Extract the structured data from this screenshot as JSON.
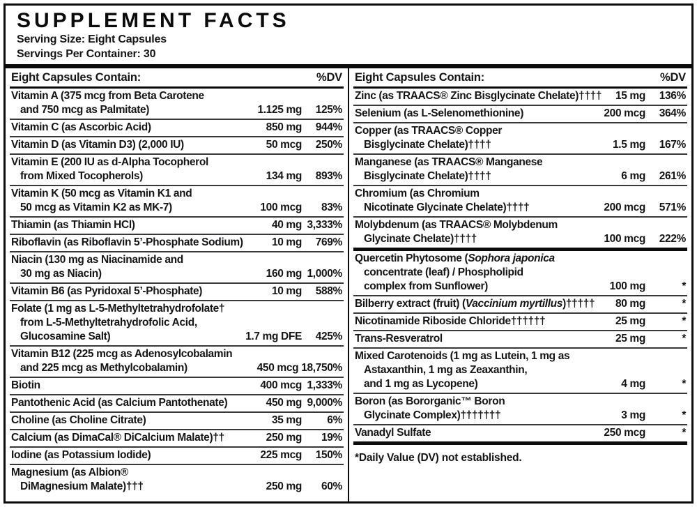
{
  "label": {
    "title": "SUPPLEMENT FACTS",
    "serving_size": "Serving Size: Eight Capsules",
    "servings_per_container": "Servings Per Container: 30",
    "columns": [
      {
        "header": "Eight Capsules Contain:",
        "dv_header": "%DV",
        "rows": [
          {
            "name_lines": [
              [
                "Vitamin A (375 mcg from Beta Carotene"
              ],
              [
                "and 750 mcg as Palmitate)"
              ]
            ],
            "amount": "1.125 mg",
            "dv": "125%",
            "sep": "first"
          },
          {
            "name_lines": [
              [
                "Vitamin C (as Ascorbic Acid)"
              ]
            ],
            "amount": "850 mg",
            "dv": "944%",
            "sep": "line"
          },
          {
            "name_lines": [
              [
                "Vitamin D (as Vitamin D3) (2,000 IU)"
              ]
            ],
            "amount": "50 mcg",
            "dv": "250%",
            "sep": "line"
          },
          {
            "name_lines": [
              [
                "Vitamin E (200 IU as d-Alpha Tocopherol"
              ],
              [
                "from Mixed Tocopherols)"
              ]
            ],
            "amount": "134 mg",
            "dv": "893%",
            "sep": "line"
          },
          {
            "name_lines": [
              [
                "Vitamin K (50 mcg as Vitamin K1 and"
              ],
              [
                "50 mcg as Vitamin K2 as MK-7)"
              ]
            ],
            "amount": "100 mcg",
            "dv": "83%",
            "sep": "line"
          },
          {
            "name_lines": [
              [
                "Thiamin (as Thiamin HCl)"
              ]
            ],
            "amount": "40 mg",
            "dv": "3,333%",
            "sep": "line"
          },
          {
            "name_lines": [
              [
                "Riboflavin (as Riboflavin 5’-Phosphate Sodium)"
              ]
            ],
            "amount": "10 mg",
            "dv": "769%",
            "sep": "line"
          },
          {
            "name_lines": [
              [
                "Niacin (130 mg as Niacinamide and"
              ],
              [
                "30 mg as Niacin)"
              ]
            ],
            "amount": "160 mg",
            "dv": "1,000%",
            "sep": "line"
          },
          {
            "name_lines": [
              [
                "Vitamin B6 (as Pyridoxal 5’-Phosphate)"
              ]
            ],
            "amount": "10 mg",
            "dv": "588%",
            "sep": "line"
          },
          {
            "name_lines": [
              [
                "Folate (1 mg as L-5-Methyltetrahydrofolate†"
              ],
              [
                "from L-5-Methyltetrahydrofolic Acid,"
              ],
              [
                "Glucosamine Salt)"
              ]
            ],
            "amount": "1.7 mg DFE",
            "dv": "425%",
            "sep": "line"
          },
          {
            "name_lines": [
              [
                "Vitamin B12 (225 mcg as Adenosylcobalamin"
              ],
              [
                "and 225 mcg as Methylcobalamin)"
              ]
            ],
            "amount": "450 mcg",
            "dv": "18,750%",
            "sep": "line"
          },
          {
            "name_lines": [
              [
                "Biotin"
              ]
            ],
            "amount": "400 mcg",
            "dv": "1,333%",
            "sep": "line"
          },
          {
            "name_lines": [
              [
                "Pantothenic Acid (as Calcium Pantothenate)"
              ]
            ],
            "amount": "450 mg",
            "dv": "9,000%",
            "sep": "line"
          },
          {
            "name_lines": [
              [
                "Choline (as Choline Citrate)"
              ]
            ],
            "amount": "35 mg",
            "dv": "6%",
            "sep": "line"
          },
          {
            "name_lines": [
              [
                "Calcium (as DimaCal® DiCalcium Malate)††"
              ]
            ],
            "amount": "250 mg",
            "dv": "19%",
            "sep": "line"
          },
          {
            "name_lines": [
              [
                "Iodine (as Potassium Iodide)"
              ]
            ],
            "amount": "225 mcg",
            "dv": "150%",
            "sep": "line"
          },
          {
            "name_lines": [
              [
                "Magnesium (as Albion®"
              ],
              [
                "DiMagnesium Malate)†††"
              ]
            ],
            "amount": "250 mg",
            "dv": "60%",
            "sep": "line"
          }
        ]
      },
      {
        "header": "Eight Capsules Contain:",
        "dv_header": "%DV",
        "rows": [
          {
            "name_lines": [
              [
                "Zinc (as TRAACS® Zinc Bisglycinate Chelate)††††"
              ]
            ],
            "amount": "15 mg",
            "dv": "136%",
            "sep": "first"
          },
          {
            "name_lines": [
              [
                "Selenium (as L-Selenomethionine)"
              ]
            ],
            "amount": "200 mcg",
            "dv": "364%",
            "sep": "line"
          },
          {
            "name_lines": [
              [
                "Copper (as TRAACS® Copper"
              ],
              [
                "Bisglycinate Chelate)††††"
              ]
            ],
            "amount": "1.5 mg",
            "dv": "167%",
            "sep": "line"
          },
          {
            "name_lines": [
              [
                "Manganese (as TRAACS® Manganese"
              ],
              [
                "Bisglycinate Chelate)††††"
              ]
            ],
            "amount": "6 mg",
            "dv": "261%",
            "sep": "line"
          },
          {
            "name_lines": [
              [
                "Chromium (as Chromium"
              ],
              [
                "Nicotinate Glycinate Chelate)††††"
              ]
            ],
            "amount": "200 mcg",
            "dv": "571%",
            "sep": "line"
          },
          {
            "name_lines": [
              [
                "Molybdenum (as TRAACS® Molybdenum"
              ],
              [
                "Glycinate Chelate)††††"
              ]
            ],
            "amount": "100 mcg",
            "dv": "222%",
            "sep": "line"
          },
          {
            "name_lines": [
              [
                "Quercetin Phytosome (",
                {
                  "i": "Sophora japonica"
                }
              ],
              [
                "concentrate (leaf) / Phospholipid"
              ],
              [
                "complex from Sunflower)"
              ]
            ],
            "amount": "100 mg",
            "dv": "*",
            "sep": "bar"
          },
          {
            "name_lines": [
              [
                "Bilberry extract (fruit) (",
                {
                  "i": "Vaccinium myrtillus"
                },
                ")†††††"
              ]
            ],
            "amount": "80 mg",
            "dv": "*",
            "sep": "line"
          },
          {
            "name_lines": [
              [
                "Nicotinamide Riboside Chloride††††††"
              ]
            ],
            "amount": "25 mg",
            "dv": "*",
            "sep": "line"
          },
          {
            "name_lines": [
              [
                "Trans-Resveratrol"
              ]
            ],
            "amount": "25 mg",
            "dv": "*",
            "sep": "line"
          },
          {
            "name_lines": [
              [
                "Mixed Carotenoids (1 mg as Lutein, 1 mg as"
              ],
              [
                "Astaxanthin, 1 mg as Zeaxanthin,"
              ],
              [
                "and 1 mg as Lycopene)"
              ]
            ],
            "amount": "4 mg",
            "dv": "*",
            "sep": "line"
          },
          {
            "name_lines": [
              [
                "Boron (as Bororganic™ Boron"
              ],
              [
                "Glycinate Complex)†††††††"
              ]
            ],
            "amount": "3 mg",
            "dv": "*",
            "sep": "line"
          },
          {
            "name_lines": [
              [
                "Vanadyl Sulfate"
              ]
            ],
            "amount": "250 mcg",
            "dv": "*",
            "sep": "line"
          }
        ],
        "footnote": "*Daily Value (DV) not established."
      }
    ]
  }
}
